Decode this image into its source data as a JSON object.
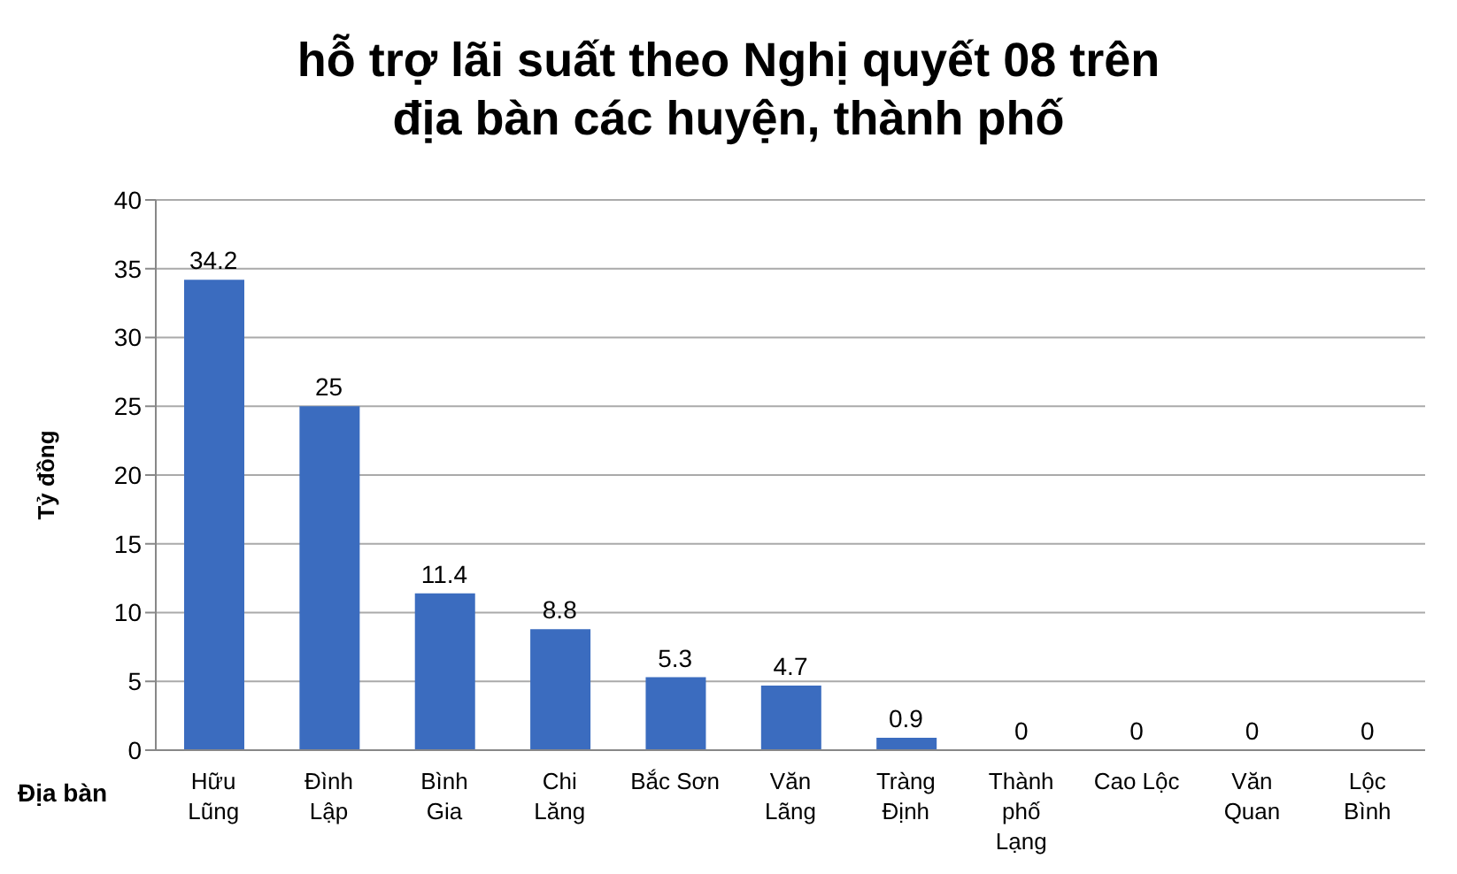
{
  "chart_data": {
    "type": "bar",
    "title": "hỗ trợ lãi suất theo Nghị quyết 08 trên\nđịa bàn các huyện, thành phố",
    "xlabel": "Địa bàn",
    "ylabel": "Tỷ đồng",
    "categories": [
      "Hữu Lũng",
      "Đình Lập",
      "Bình Gia",
      "Chi Lăng",
      "Bắc Sơn",
      "Văn Lãng",
      "Tràng Định",
      "Thành phố Lạng",
      "Cao Lộc",
      "Văn Quan",
      "Lộc Bình"
    ],
    "values": [
      34.2,
      25,
      11.4,
      8.8,
      5.3,
      4.7,
      0.9,
      0,
      0,
      0,
      0
    ],
    "color": "#3b6cbf",
    "ylim": [
      0,
      40
    ],
    "yticks": [
      0,
      5,
      10,
      15,
      20,
      25,
      30,
      35,
      40
    ],
    "grid": "y",
    "data_labels": true
  }
}
